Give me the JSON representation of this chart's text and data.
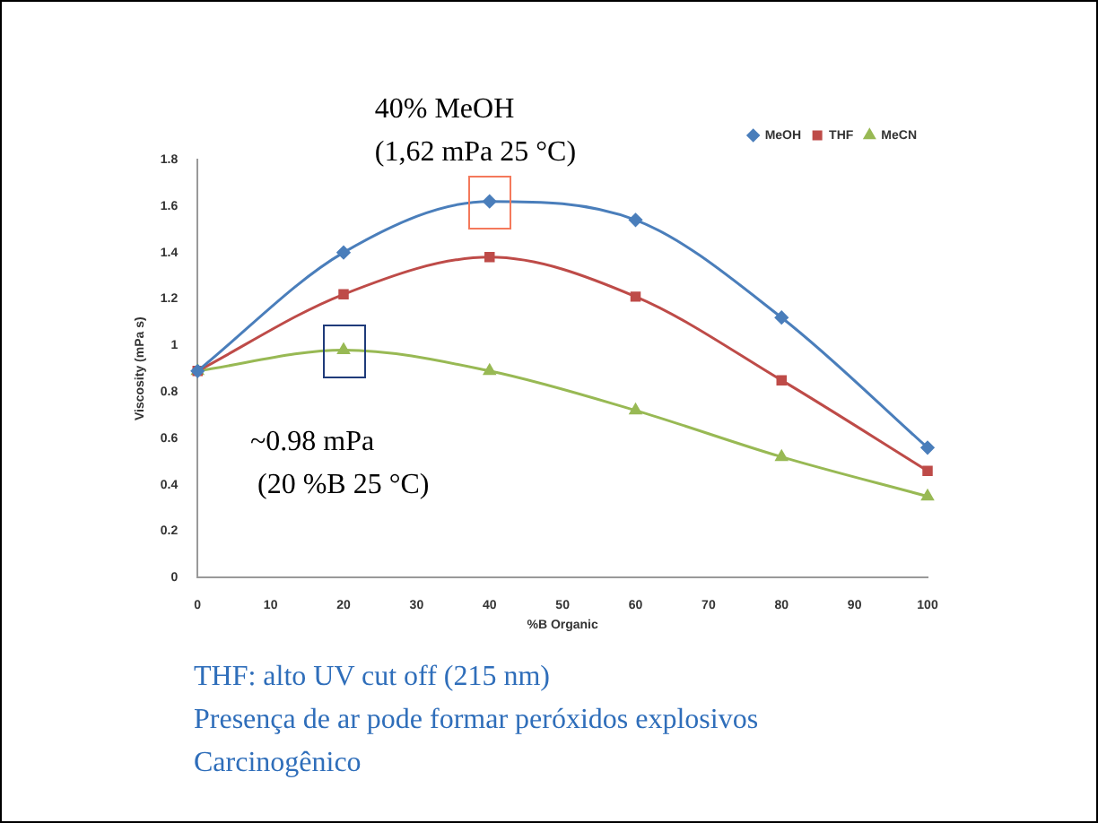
{
  "chart_data": {
    "type": "line",
    "xlabel": "%B Organic",
    "ylabel": "Viscosity (mPa s)",
    "x": [
      0,
      20,
      40,
      60,
      80,
      100
    ],
    "series": [
      {
        "name": "MeOH",
        "color": "#4a7ebb",
        "marker": "diamond",
        "values": [
          0.89,
          1.4,
          1.62,
          1.54,
          1.12,
          0.56
        ]
      },
      {
        "name": "THF",
        "color": "#be4b48",
        "marker": "square",
        "values": [
          0.89,
          1.22,
          1.38,
          1.21,
          0.85,
          0.46
        ]
      },
      {
        "name": "MeCN",
        "color": "#98b954",
        "marker": "triangle",
        "values": [
          0.89,
          0.98,
          0.89,
          0.72,
          0.52,
          0.35
        ]
      }
    ],
    "xlim": [
      0,
      100
    ],
    "xticks": [
      0,
      10,
      20,
      30,
      40,
      50,
      60,
      70,
      80,
      90,
      100
    ],
    "ylim": [
      0,
      1.8
    ],
    "yticks": [
      0,
      0.2,
      0.4,
      0.6,
      0.8,
      1,
      1.2,
      1.4,
      1.6,
      1.8
    ],
    "grid": false,
    "legend": "top right",
    "annotations": [
      {
        "text": "40% MeOH\n(1,62 mPa 25 °C)",
        "x": 40,
        "y": 1.62
      },
      {
        "text": "~0.98 mPa\n (20 %B 25 °C)",
        "x": 20,
        "y": 0.98
      },
      "THF: alto UV cut off (215 nm)",
      "Presença de ar pode formar peróxidos explosivos",
      "Carcinogênico"
    ]
  }
}
